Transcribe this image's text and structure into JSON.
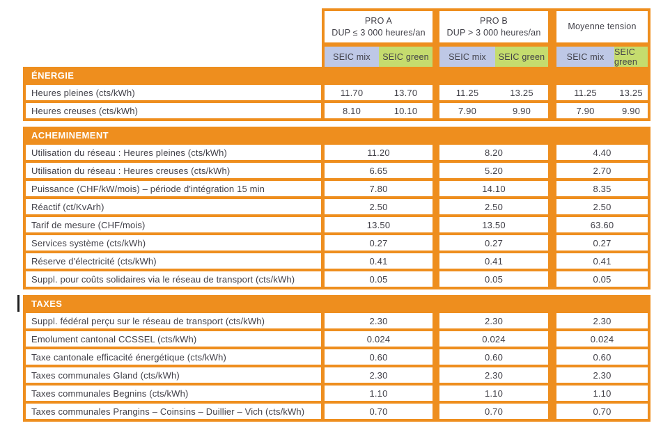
{
  "palette": {
    "orange": "#EE8E1E",
    "lavender": "#BEC8E6",
    "green": "#C5DC6E",
    "text": "#414048",
    "band_text": "#FFFFFF"
  },
  "header": {
    "groups": [
      {
        "line1": "PRO A",
        "line2": "DUP ≤ 3 000 heures/an"
      },
      {
        "line1": "PRO B",
        "line2": "DUP > 3 000 heures/an"
      },
      {
        "line1": "Moyenne tension",
        "line2": ""
      }
    ],
    "subheaders": [
      "SEIC mix",
      "SEIC green",
      "SEIC mix",
      "SEIC green",
      "SEIC mix",
      "SEIC green"
    ]
  },
  "sections": [
    {
      "id": "energie",
      "title": "ÉNERGIE",
      "type": "split",
      "rows": [
        {
          "label": "Heures pleines (cts/kWh)",
          "values": [
            "11.70",
            "13.70",
            "11.25",
            "13.25",
            "11.25",
            "13.25"
          ]
        },
        {
          "label": "Heures creuses (cts/kWh)",
          "values": [
            "8.10",
            "10.10",
            "7.90",
            "9.90",
            "7.90",
            "9.90"
          ]
        }
      ]
    },
    {
      "id": "acheminement",
      "title": "ACHEMINEMENT",
      "type": "merged",
      "rows": [
        {
          "label": "Utilisation du réseau : Heures pleines (cts/kWh)",
          "values": [
            "11.20",
            "8.20",
            "4.40"
          ]
        },
        {
          "label": "Utilisation du réseau : Heures creuses (cts/kWh)",
          "values": [
            "6.65",
            "5.20",
            "2.70"
          ]
        },
        {
          "label": "Puissance (CHF/kW/mois) – période d'intégration 15 min",
          "values": [
            "7.80",
            "14.10",
            "8.35"
          ]
        },
        {
          "label": "Réactif (ct/KvArh)",
          "values": [
            "2.50",
            "2.50",
            "2.50"
          ]
        },
        {
          "label": "Tarif de mesure (CHF/mois)",
          "values": [
            "13.50",
            "13.50",
            "63.60"
          ]
        },
        {
          "label": "Services système (cts/kWh)",
          "values": [
            "0.27",
            "0.27",
            "0.27"
          ]
        },
        {
          "label": "Réserve d'électricité (cts/kWh)",
          "values": [
            "0.41",
            "0.41",
            "0.41"
          ]
        },
        {
          "label": "Suppl. pour coûts solidaires via le réseau de transport (cts/kWh)",
          "values": [
            "0.05",
            "0.05",
            "0.05"
          ]
        }
      ]
    },
    {
      "id": "taxes",
      "title": "TAXES",
      "type": "merged",
      "black_mark": true,
      "rows": [
        {
          "label": "Suppl. fédéral perçu sur le réseau de transport (cts/kWh)",
          "values": [
            "2.30",
            "2.30",
            "2.30"
          ]
        },
        {
          "label": "Emolument cantonal CCSSEL (cts/kWh)",
          "values": [
            "0.024",
            "0.024",
            "0.024"
          ]
        },
        {
          "label": "Taxe cantonale efficacité énergétique (cts/kWh)",
          "values": [
            "0.60",
            "0.60",
            "0.60"
          ]
        },
        {
          "label": "Taxes communales Gland (cts/kWh)",
          "values": [
            "2.30",
            "2.30",
            "2.30"
          ]
        },
        {
          "label": "Taxes communales Begnins (cts/kWh)",
          "values": [
            "1.10",
            "1.10",
            "1.10"
          ]
        },
        {
          "label": "Taxes communales Prangins – Coinsins – Duillier – Vich (cts/kWh)",
          "values": [
            "0.70",
            "0.70",
            "0.70"
          ]
        }
      ]
    }
  ]
}
